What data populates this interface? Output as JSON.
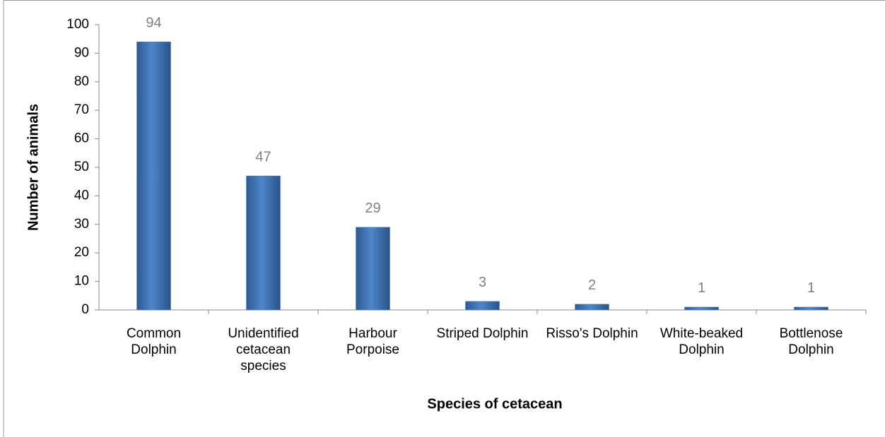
{
  "chart_data": {
    "type": "bar",
    "x_label": "Species of cetacean",
    "y_label": "Number of animals",
    "categories": [
      "Common Dolphin",
      "Unidentified cetacean species",
      "Harbour Porpoise",
      "Striped Dolphin",
      "Risso's Dolphin",
      "White-beaked Dolphin",
      "Bottlenose Dolphin"
    ],
    "values": [
      94,
      47,
      29,
      3,
      2,
      1,
      1
    ],
    "color": "#4a7ebb",
    "ylim": [
      0,
      100
    ],
    "yticks": [
      0,
      10,
      20,
      30,
      40,
      50,
      60,
      70,
      80,
      90,
      100
    ],
    "grid": false
  }
}
